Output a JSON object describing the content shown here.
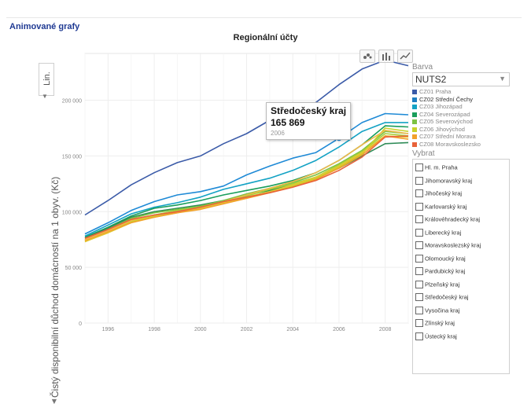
{
  "app_title": "Animované grafy",
  "chart_title": "Regionální účty",
  "y_axis_label": "Čistý disponibilní důchod domácností na 1 obyv. (Kč)",
  "scale_label": "Lin.",
  "toolbar": {
    "icons": [
      "scatter-icon",
      "bar-chart-icon",
      "line-chart-icon"
    ]
  },
  "side": {
    "barva_label": "Barva",
    "nuts_value": "NUTS2",
    "vybrat_label": "Vybrat",
    "legend": [
      {
        "label": "CZ01 Praha",
        "color": "#3b5ba8",
        "active": false
      },
      {
        "label": "CZ02 Střední Čechy",
        "color": "#1f7fc2",
        "active": true
      },
      {
        "label": "CZ03 Jihozápad",
        "color": "#13a2c4",
        "active": false
      },
      {
        "label": "CZ04 Severozápad",
        "color": "#1a9e5c",
        "active": false
      },
      {
        "label": "CZ05 Severovýchod",
        "color": "#7cc243",
        "active": false
      },
      {
        "label": "CZ06 Jihovýchod",
        "color": "#c8d22a",
        "active": false
      },
      {
        "label": "CZ07 Střední Morava",
        "color": "#f2a12b",
        "active": false
      },
      {
        "label": "CZ08 Moravskoslezsko",
        "color": "#e8623a",
        "active": false
      }
    ],
    "filters": [
      "Hl. m. Praha",
      "Jihomoravský kraj",
      "Jihočeský kraj",
      "Karlovarský kraj",
      "Královéhradecký kraj",
      "Liberecký kraj",
      "Moravskoslezský kraj",
      "Olomoucký kraj",
      "Pardubický kraj",
      "Plzeňský kraj",
      "Středočeský kraj",
      "Vysočina kraj",
      "Zlínský kraj",
      "Ústecký kraj"
    ]
  },
  "tooltip": {
    "title": "Středočeský kraj",
    "value": "165 869",
    "year": "2006"
  },
  "chart_data": {
    "type": "line",
    "title": "Regionální účty",
    "xlabel": "",
    "ylabel": "Čistý disponibilní důchod domácností na 1 obyv. (Kč)",
    "xlim": [
      1995,
      2009
    ],
    "ylim": [
      0,
      242000
    ],
    "x_ticks": [
      1996,
      1998,
      2000,
      2002,
      2004,
      2006,
      2008
    ],
    "y_ticks": [
      0,
      50000,
      100000,
      150000,
      200000
    ],
    "y_tick_labels": [
      "0",
      "50 000",
      "100 000",
      "150 000",
      "200 000"
    ],
    "grid": true,
    "legend": "right",
    "x": [
      1995,
      1996,
      1997,
      1998,
      1999,
      2000,
      2001,
      2002,
      2003,
      2004,
      2005,
      2006,
      2007,
      2008,
      2009
    ],
    "highlight": {
      "series": "Středočeský kraj",
      "x": 2006,
      "y": 165869,
      "color": "#1f8ad6"
    },
    "series": [
      {
        "name": "Hl. m. Praha",
        "color": "#3b5ba8",
        "values": [
          97000,
          110000,
          124000,
          135000,
          144000,
          150000,
          161000,
          170000,
          182000,
          188000,
          198000,
          214000,
          228000,
          236000,
          231000
        ]
      },
      {
        "name": "Středočeský kraj",
        "color": "#1f8ad6",
        "values": [
          80000,
          90000,
          101000,
          109000,
          115000,
          118000,
          123000,
          133000,
          141000,
          148000,
          153000,
          165869,
          180000,
          188000,
          187000
        ]
      },
      {
        "name": "",
        "color": "#13a2c4",
        "values": [
          78000,
          88000,
          98000,
          104000,
          108000,
          113000,
          120000,
          125000,
          130000,
          137000,
          146000,
          158000,
          172000,
          180000,
          180000
        ]
      },
      {
        "name": "",
        "color": "#1a9e5c",
        "values": [
          77000,
          86000,
          96000,
          103000,
          106000,
          110000,
          115000,
          119000,
          123000,
          128000,
          135000,
          146000,
          160000,
          177000,
          176000
        ]
      },
      {
        "name": "",
        "color": "#2e8b57",
        "values": [
          76000,
          85000,
          95000,
          100000,
          103000,
          106000,
          110000,
          115000,
          119000,
          124000,
          130000,
          139000,
          150000,
          161000,
          162000
        ]
      },
      {
        "name": "",
        "color": "#7cc243",
        "values": [
          75000,
          84000,
          94000,
          99000,
          102000,
          105000,
          110000,
          116000,
          121000,
          126000,
          133000,
          143000,
          155000,
          172000,
          170000
        ]
      },
      {
        "name": "",
        "color": "#a6cf3a",
        "values": [
          74000,
          83000,
          92000,
          97000,
          101000,
          104000,
          109000,
          114000,
          120000,
          125000,
          131000,
          142000,
          154000,
          170000,
          168000
        ]
      },
      {
        "name": "",
        "color": "#c8d22a",
        "values": [
          73000,
          82000,
          91000,
          96000,
          100000,
          104000,
          108000,
          113000,
          118000,
          123000,
          130000,
          140000,
          152000,
          175000,
          172000
        ]
      },
      {
        "name": "",
        "color": "#e0c830",
        "values": [
          73000,
          81000,
          90000,
          95000,
          99000,
          103000,
          108000,
          113000,
          118000,
          124000,
          131000,
          141000,
          153000,
          168000,
          167000
        ]
      },
      {
        "name": "",
        "color": "#f2a12b",
        "values": [
          74000,
          82000,
          90000,
          95000,
          99000,
          102000,
          107000,
          112000,
          117000,
          122000,
          129000,
          139000,
          151000,
          168000,
          165000
        ]
      },
      {
        "name": "",
        "color": "#f0b84a",
        "values": [
          75000,
          83000,
          92000,
          97000,
          100000,
          104000,
          109000,
          115000,
          121000,
          127000,
          135000,
          146000,
          160000,
          173000,
          170000
        ]
      },
      {
        "name": "",
        "color": "#e8623a",
        "values": [
          76000,
          84000,
          93000,
          97000,
          100000,
          104000,
          109000,
          113000,
          117000,
          122000,
          128000,
          137000,
          149000,
          167000,
          168000
        ]
      }
    ]
  }
}
